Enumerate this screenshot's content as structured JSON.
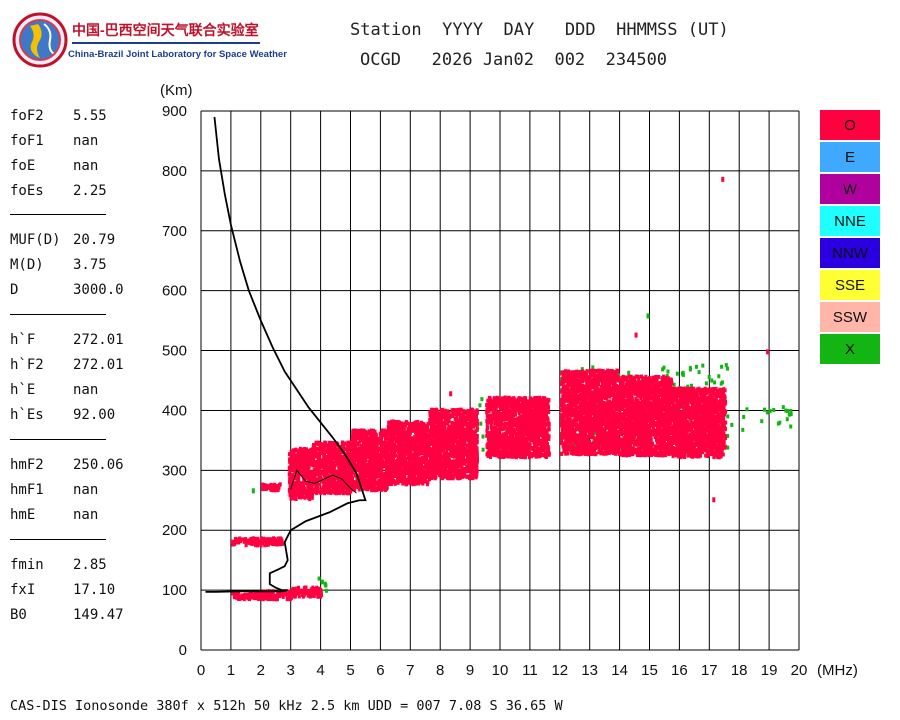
{
  "logo": {
    "name_cn": "中国-巴西空间天气联合实验室",
    "name_en": "China-Brazil Joint Laboratory for Space Weather"
  },
  "header": {
    "line1": "Station  YYYY  DAY   DDD  HHMMSS (UT)",
    "line2": "OCGD   2026 Jan02  002  234500"
  },
  "params": [
    {
      "label": "foF2",
      "value": "5.55"
    },
    {
      "label": "foF1",
      "value": "nan"
    },
    {
      "label": "foE",
      "value": "nan"
    },
    {
      "label": "foEs",
      "value": "2.25"
    },
    {
      "label": "MUF(D)",
      "value": "20.79"
    },
    {
      "label": "M(D)",
      "value": "3.75"
    },
    {
      "label": "D",
      "value": "3000.0"
    },
    {
      "label": "h`F",
      "value": "272.01"
    },
    {
      "label": "h`F2",
      "value": "272.01"
    },
    {
      "label": "h`E",
      "value": "nan"
    },
    {
      "label": "h`Es",
      "value": "92.00"
    },
    {
      "label": "hmF2",
      "value": "250.06"
    },
    {
      "label": "hmF1",
      "value": "nan"
    },
    {
      "label": "hmE",
      "value": "nan"
    },
    {
      "label": "fmin",
      "value": "2.85"
    },
    {
      "label": "fxI",
      "value": "17.10"
    },
    {
      "label": "B0",
      "value": "149.47"
    }
  ],
  "legend": [
    {
      "label": "O",
      "color": "#ff0040"
    },
    {
      "label": "E",
      "color": "#3fa9ff"
    },
    {
      "label": "W",
      "color": "#b0009e"
    },
    {
      "label": "NNE",
      "color": "#20ffff"
    },
    {
      "label": "NNW",
      "color": "#2a00e0"
    },
    {
      "label": "SSE",
      "color": "#ffff33"
    },
    {
      "label": "SSW",
      "color": "#ffb6a8"
    },
    {
      "label": "X",
      "color": "#12b512"
    }
  ],
  "footer": "CAS-DIS Ionosonde 380f x 512h 50 kHz 2.5 km UDD = 007 7.08 S 36.65 W",
  "chart_data": {
    "type": "scatter",
    "title": "",
    "xlabel": "(MHz)",
    "ylabel": "(Km)",
    "xlim": [
      0,
      20
    ],
    "ylim": [
      0,
      900
    ],
    "x_ticks": [
      0,
      1,
      2,
      3,
      4,
      5,
      6,
      7,
      8,
      9,
      10,
      11,
      12,
      13,
      14,
      15,
      16,
      17,
      18,
      19,
      20
    ],
    "y_ticks": [
      0,
      100,
      200,
      300,
      400,
      500,
      600,
      700,
      800,
      900
    ],
    "grid": true,
    "colors": {
      "O": "#ff0040",
      "X": "#12b512",
      "profile": "#000000"
    },
    "o_trace_bands": [
      {
        "x": [
          1.0,
          2.3
        ],
        "y": [
          88,
          100
        ]
      },
      {
        "x": [
          2.0,
          3.0
        ],
        "y": [
          88,
          102
        ]
      },
      {
        "x": [
          3.0,
          4.0
        ],
        "y": [
          92,
          108
        ]
      },
      {
        "x": [
          1.0,
          2.7
        ],
        "y": [
          178,
          190
        ]
      },
      {
        "x": [
          2.0,
          2.6
        ],
        "y": [
          270,
          280
        ]
      },
      {
        "x": [
          2.9,
          3.7
        ],
        "y": [
          255,
          340
        ]
      },
      {
        "x": [
          3.7,
          5.0
        ],
        "y": [
          265,
          350
        ]
      },
      {
        "x": [
          5.0,
          6.2
        ],
        "y": [
          270,
          370
        ]
      },
      {
        "x": [
          6.2,
          7.6
        ],
        "y": [
          280,
          385
        ]
      },
      {
        "x": [
          7.6,
          9.2
        ],
        "y": [
          290,
          405
        ]
      },
      {
        "x": [
          9.5,
          11.6
        ],
        "y": [
          325,
          425
        ]
      },
      {
        "x": [
          12.0,
          13.9
        ],
        "y": [
          330,
          470
        ]
      },
      {
        "x": [
          13.9,
          15.7
        ],
        "y": [
          328,
          460
        ]
      },
      {
        "x": [
          15.7,
          17.5
        ],
        "y": [
          325,
          440
        ]
      }
    ],
    "x_trace_bands": [
      {
        "x": [
          3.9,
          4.2
        ],
        "y": [
          95,
          125
        ]
      },
      {
        "x": [
          9.0,
          11.5
        ],
        "y": [
          330,
          430
        ]
      },
      {
        "x": [
          12.0,
          17.6
        ],
        "y": [
          330,
          480
        ]
      },
      {
        "x": [
          17.6,
          20.0
        ],
        "y": [
          370,
          410
        ]
      }
    ],
    "isolated_points": [
      {
        "x": 17.4,
        "y": 790,
        "c": "O"
      },
      {
        "x": 18.9,
        "y": 502,
        "c": "O"
      },
      {
        "x": 17.1,
        "y": 255,
        "c": "O"
      },
      {
        "x": 14.9,
        "y": 562,
        "c": "X"
      },
      {
        "x": 14.5,
        "y": 530,
        "c": "O"
      },
      {
        "x": 8.3,
        "y": 432,
        "c": "O"
      },
      {
        "x": 1.7,
        "y": 270,
        "c": "X"
      }
    ],
    "profile": {
      "x": [
        0.45,
        0.6,
        0.8,
        1.0,
        1.3,
        1.6,
        2.0,
        2.4,
        2.8,
        3.2,
        3.6,
        4.0,
        4.4,
        4.8,
        5.2,
        5.5,
        5.3,
        4.9,
        4.3,
        3.5,
        3.0,
        2.8,
        2.9,
        2.8,
        2.6,
        2.3,
        2.3,
        2.5,
        2.7,
        2.9,
        2.7,
        1.2,
        0.5,
        0.15
      ],
      "y": [
        890,
        820,
        760,
        710,
        650,
        600,
        550,
        505,
        465,
        435,
        405,
        380,
        355,
        328,
        295,
        250,
        250,
        245,
        230,
        215,
        200,
        180,
        150,
        140,
        135,
        128,
        110,
        104,
        100,
        100,
        98,
        98,
        97,
        97
      ]
    },
    "profile_inner": {
      "x": [
        3.0,
        3.2,
        3.5,
        3.8,
        4.1,
        4.4,
        4.7,
        5.0,
        5.2
      ],
      "y": [
        268,
        300,
        282,
        278,
        285,
        292,
        286,
        270,
        262
      ]
    }
  }
}
